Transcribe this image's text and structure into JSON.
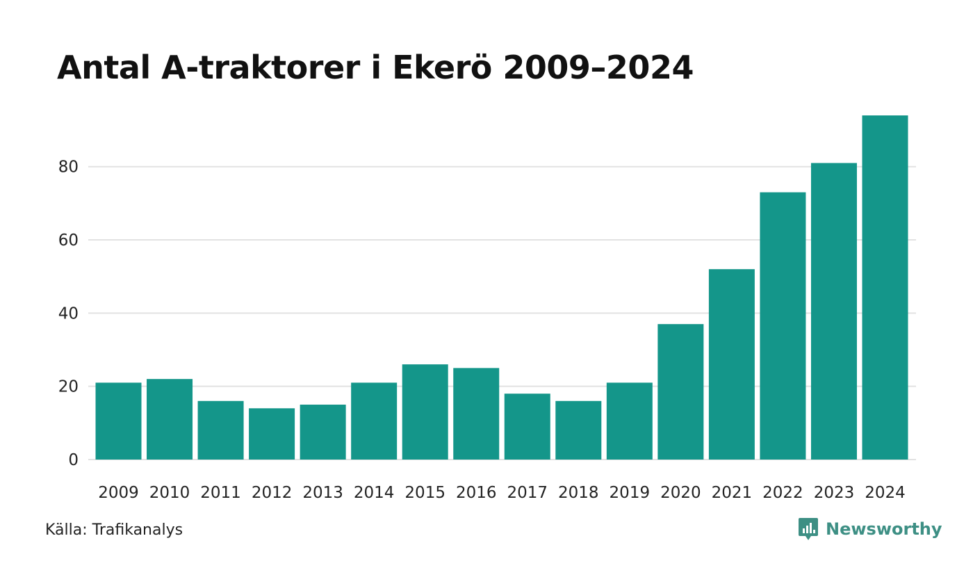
{
  "chart_data": {
    "type": "bar",
    "title": "Antal A-traktorer i Ekerö 2009–2024",
    "xlabel": "",
    "ylabel": "",
    "categories": [
      "2009",
      "2010",
      "2011",
      "2012",
      "2013",
      "2014",
      "2015",
      "2016",
      "2017",
      "2018",
      "2019",
      "2020",
      "2021",
      "2022",
      "2023",
      "2024"
    ],
    "values": [
      21,
      22,
      16,
      14,
      15,
      21,
      26,
      25,
      18,
      16,
      21,
      37,
      52,
      73,
      81,
      94
    ],
    "ylim": [
      0,
      94
    ],
    "yticks": [
      0,
      20,
      40,
      60,
      80
    ],
    "grid": true,
    "bar_color": "#14968a",
    "grid_color": "#e2e2e2"
  },
  "footer": {
    "source": "Källa: Trafikanalys",
    "brand": "Newsworthy",
    "brand_color": "#3d8f84",
    "brand_icon": "newsworthy-logo-icon"
  }
}
